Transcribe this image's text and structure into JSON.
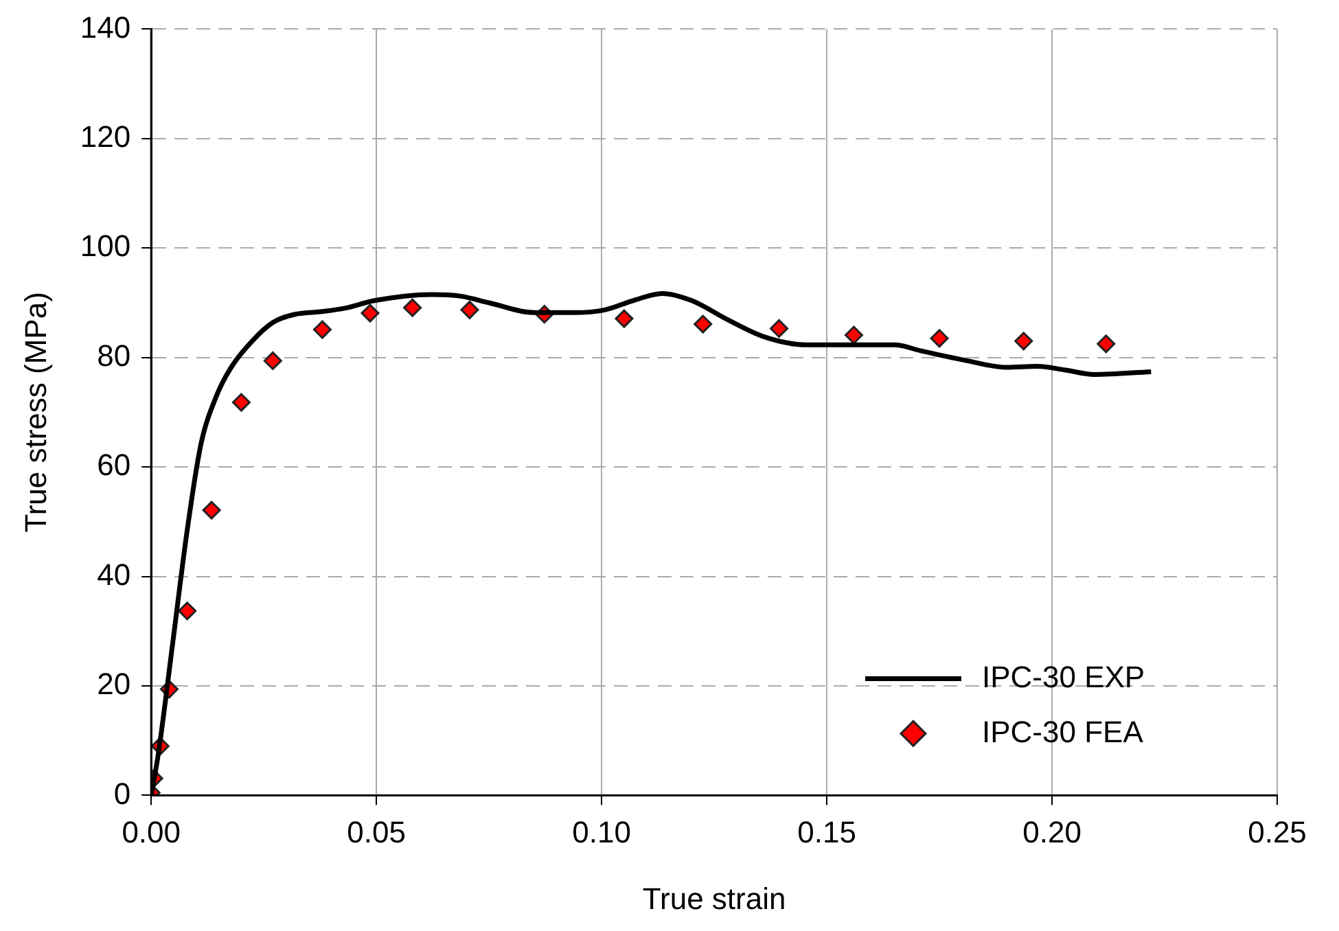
{
  "chart_data": {
    "type": "line",
    "xlabel": "True strain",
    "ylabel": "True stress (MPa)",
    "xlim": [
      0,
      0.25
    ],
    "xticks": [
      {
        "value": 0,
        "label": "0.00"
      },
      {
        "value": 0.05,
        "label": "0.05"
      },
      {
        "value": 0.1,
        "label": "0.10"
      },
      {
        "value": 0.15,
        "label": "0.15"
      },
      {
        "value": 0.2,
        "label": "0.20"
      },
      {
        "value": 0.25,
        "label": "0.25"
      }
    ],
    "ylim": [
      0,
      140
    ],
    "yticks": [
      0,
      20,
      40,
      60,
      80,
      100,
      120,
      140
    ],
    "grid": true,
    "legend": "bottom right",
    "series": [
      {
        "name": "IPC-30 EXP",
        "color": "#000000",
        "line_style": "solid",
        "marker": "none",
        "x": [
          0,
          0.0016,
          0.0048,
          0.008,
          0.011,
          0.0144,
          0.0176,
          0.0224,
          0.027,
          0.032,
          0.038,
          0.043,
          0.0496,
          0.0623,
          0.0687,
          0.075,
          0.085,
          0.094,
          0.1007,
          0.107,
          0.1135,
          0.12,
          0.128,
          0.136,
          0.1455,
          0.158,
          0.165,
          0.171,
          0.1806,
          0.19,
          0.1966,
          0.203,
          0.2094,
          0.222
        ],
        "values": [
          0,
          7.7,
          28,
          48.5,
          64,
          72.8,
          78,
          83,
          86.4,
          87.9,
          88.4,
          89,
          90.4,
          91.5,
          91.2,
          90,
          88.2,
          88.2,
          88.7,
          90.4,
          91.7,
          90.4,
          86.9,
          83.8,
          82.3,
          82.3,
          82.3,
          81.2,
          79.5,
          78.2,
          78.4,
          77.7,
          76.9,
          77.4
        ]
      },
      {
        "name": "IPC-30 FEA",
        "type": "scatter",
        "color": "#ff0000",
        "marker": "diamond",
        "x": [
          0,
          0.0006,
          0.002,
          0.004,
          0.008,
          0.0134,
          0.02,
          0.027,
          0.038,
          0.0486,
          0.058,
          0.0707,
          0.0873,
          0.105,
          0.1225,
          0.1394,
          0.156,
          0.175,
          0.1937,
          0.212
        ],
        "values": [
          0.5,
          3.1,
          9,
          19.4,
          33.7,
          52.1,
          71.8,
          79.4,
          85.1,
          88.1,
          89.1,
          88.7,
          87.9,
          87.1,
          86.1,
          85.3,
          84.1,
          83.5,
          83,
          82.5
        ]
      }
    ]
  }
}
